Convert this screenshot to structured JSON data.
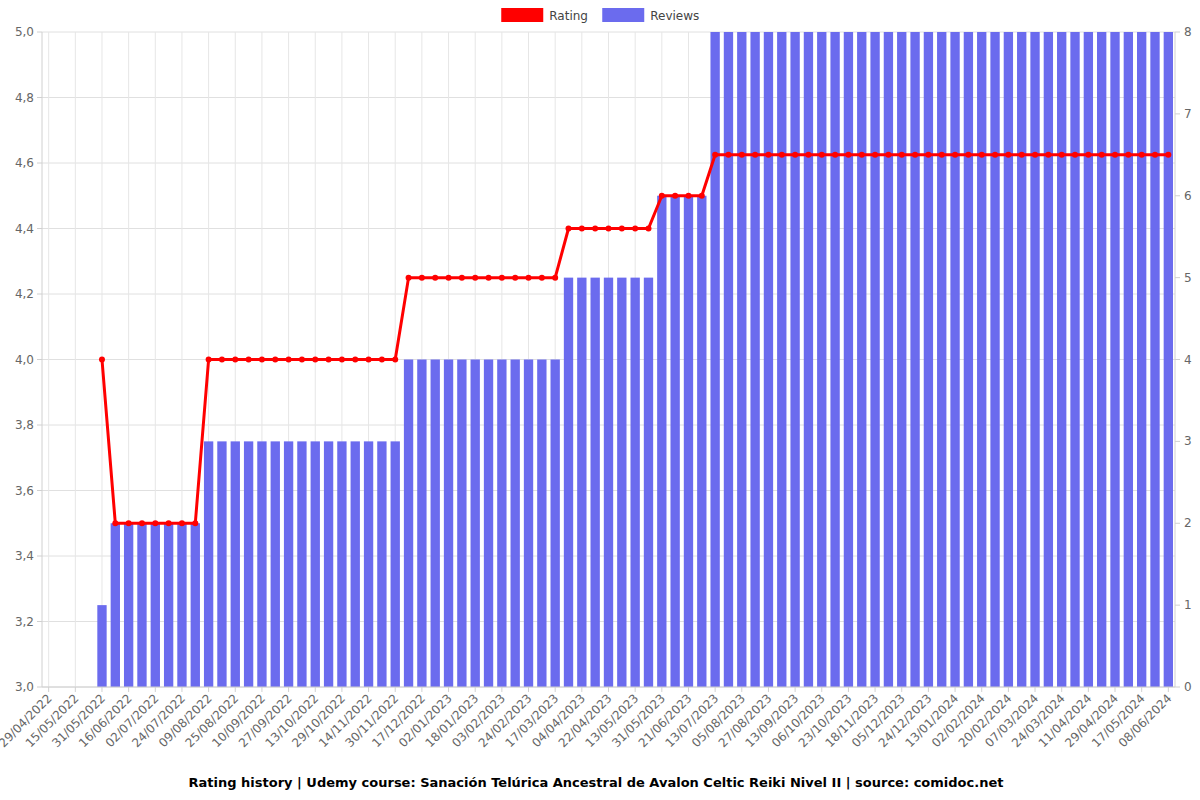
{
  "chart_data": {
    "type": "bar",
    "title": "Rating history | Udemy course: Sanación Telúrica Ancestral de Avalon Celtic Reiki Nivel II | source: comidoc.net",
    "categories": [
      "29/04/2022",
      null,
      "15/05/2022",
      null,
      "31/05/2022",
      null,
      "16/06/2022",
      null,
      "02/07/2022",
      null,
      "24/07/2022",
      null,
      "09/08/2022",
      null,
      "25/08/2022",
      null,
      "10/09/2022",
      null,
      "27/09/2022",
      null,
      "13/10/2022",
      null,
      "29/10/2022",
      null,
      "14/11/2022",
      null,
      "30/11/2022",
      null,
      "17/12/2022",
      null,
      "02/01/2023",
      null,
      "18/01/2023",
      null,
      "03/02/2023",
      null,
      "24/02/2023",
      null,
      "17/03/2023",
      null,
      "04/04/2023",
      null,
      "22/04/2023",
      null,
      "13/05/2023",
      null,
      "31/05/2023",
      null,
      "21/06/2023",
      null,
      "13/07/2023",
      null,
      "05/08/2023",
      null,
      "27/08/2023",
      null,
      "13/09/2023",
      null,
      "06/10/2023",
      null,
      "23/10/2023",
      null,
      "18/11/2023",
      null,
      "05/12/2023",
      null,
      "24/12/2023",
      null,
      "13/01/2024",
      null,
      "02/02/2024",
      null,
      "20/02/2024",
      null,
      "07/03/2024",
      null,
      "24/03/2024",
      null,
      "11/04/2024",
      null,
      "29/04/2024",
      null,
      "17/05/2024",
      null,
      "08/06/2024"
    ],
    "series": [
      {
        "name": "Rating",
        "type": "line",
        "color": "#ff0000",
        "marker": "circle",
        "values": [
          null,
          null,
          null,
          null,
          4.0,
          3.5,
          3.5,
          3.5,
          3.5,
          3.5,
          3.5,
          3.5,
          4.0,
          4.0,
          4.0,
          4.0,
          4.0,
          4.0,
          4.0,
          4.0,
          4.0,
          4.0,
          4.0,
          4.0,
          4.0,
          4.0,
          4.0,
          4.25,
          4.25,
          4.25,
          4.25,
          4.25,
          4.25,
          4.25,
          4.25,
          4.25,
          4.25,
          4.25,
          4.25,
          4.4,
          4.4,
          4.4,
          4.4,
          4.4,
          4.4,
          4.4,
          4.5,
          4.5,
          4.5,
          4.5,
          4.625,
          4.625,
          4.625,
          4.625,
          4.625,
          4.625,
          4.625,
          4.625,
          4.625,
          4.625,
          4.625,
          4.625,
          4.625,
          4.625,
          4.625,
          4.625,
          4.625,
          4.625,
          4.625,
          4.625,
          4.625,
          4.625,
          4.625,
          4.625,
          4.625,
          4.625,
          4.625,
          4.625,
          4.625,
          4.625,
          4.625,
          4.625,
          4.625,
          4.625,
          4.625
        ]
      },
      {
        "name": "Reviews",
        "type": "bar",
        "color": "#6b6bee",
        "axis": "y2",
        "values": [
          null,
          null,
          null,
          null,
          1,
          2,
          2,
          2,
          2,
          2,
          2,
          2,
          3,
          3,
          3,
          3,
          3,
          3,
          3,
          3,
          3,
          3,
          3,
          3,
          3,
          3,
          3,
          4,
          4,
          4,
          4,
          4,
          4,
          4,
          4,
          4,
          4,
          4,
          4,
          5,
          5,
          5,
          5,
          5,
          5,
          5,
          6,
          6,
          6,
          6,
          8,
          8,
          8,
          8,
          8,
          8,
          8,
          8,
          8,
          8,
          8,
          8,
          8,
          8,
          8,
          8,
          8,
          8,
          8,
          8,
          8,
          8,
          8,
          8,
          8,
          8,
          8,
          8,
          8,
          8,
          8,
          8,
          8,
          8,
          8
        ]
      }
    ],
    "ylim": [
      3,
      5
    ],
    "yticks": [
      {
        "value": 3,
        "label": "3,0"
      },
      {
        "value": 3.2,
        "label": "3,2"
      },
      {
        "value": 3.4,
        "label": "3,4"
      },
      {
        "value": 3.6,
        "label": "3,6"
      },
      {
        "value": 3.8,
        "label": "3,8"
      },
      {
        "value": 4,
        "label": "4,0"
      },
      {
        "value": 4.2,
        "label": "4,2"
      },
      {
        "value": 4.4,
        "label": "4,4"
      },
      {
        "value": 4.6,
        "label": "4,6"
      },
      {
        "value": 4.8,
        "label": "4,8"
      },
      {
        "value": 5,
        "label": "5,0"
      }
    ],
    "y2lim": [
      0,
      8
    ],
    "y2ticks": [
      0,
      1,
      2,
      3,
      4,
      5,
      6,
      7,
      8
    ],
    "grid": true,
    "legend": "top"
  }
}
